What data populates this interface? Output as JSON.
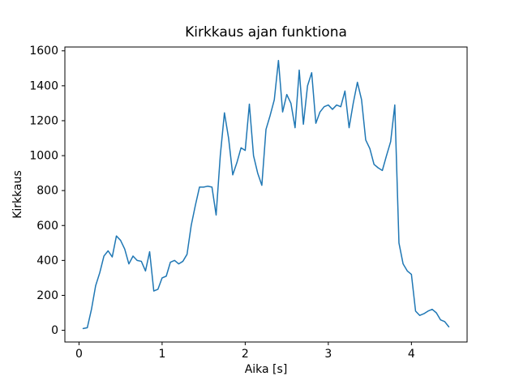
{
  "chart_data": {
    "type": "line",
    "title": "Kirkkaus ajan funktiona",
    "xlabel": "Aika [s]",
    "ylabel": "Kirkkaus",
    "xlim": [
      -0.17,
      4.67
    ],
    "ylim": [
      -67,
      1622
    ],
    "xticks": [
      0,
      1,
      2,
      3,
      4
    ],
    "yticks": [
      0,
      200,
      400,
      600,
      800,
      1000,
      1200,
      1400,
      1600
    ],
    "grid": false,
    "legend": null,
    "line_color": "#1f77b4",
    "line_width": 1.5,
    "x": [
      0.05,
      0.1,
      0.15,
      0.2,
      0.25,
      0.3,
      0.35,
      0.4,
      0.45,
      0.5,
      0.55,
      0.6,
      0.65,
      0.7,
      0.75,
      0.8,
      0.85,
      0.9,
      0.95,
      1.0,
      1.05,
      1.1,
      1.15,
      1.2,
      1.25,
      1.3,
      1.35,
      1.4,
      1.45,
      1.5,
      1.55,
      1.6,
      1.65,
      1.7,
      1.75,
      1.8,
      1.85,
      1.9,
      1.95,
      2.0,
      2.05,
      2.1,
      2.15,
      2.2,
      2.25,
      2.3,
      2.35,
      2.4,
      2.45,
      2.5,
      2.55,
      2.6,
      2.65,
      2.7,
      2.75,
      2.8,
      2.85,
      2.9,
      2.95,
      3.0,
      3.05,
      3.1,
      3.15,
      3.2,
      3.25,
      3.3,
      3.35,
      3.4,
      3.45,
      3.5,
      3.55,
      3.6,
      3.65,
      3.7,
      3.75,
      3.8,
      3.85,
      3.9,
      3.95,
      4.0,
      4.05,
      4.1,
      4.15,
      4.2,
      4.25,
      4.3,
      4.35,
      4.4,
      4.45
    ],
    "y": [
      10,
      15,
      120,
      255,
      330,
      425,
      455,
      420,
      540,
      515,
      465,
      380,
      425,
      400,
      395,
      340,
      450,
      225,
      235,
      300,
      310,
      390,
      400,
      380,
      395,
      435,
      600,
      715,
      820,
      820,
      825,
      820,
      660,
      1000,
      1245,
      1100,
      890,
      960,
      1045,
      1030,
      1295,
      1000,
      900,
      830,
      1150,
      1230,
      1320,
      1545,
      1250,
      1350,
      1300,
      1160,
      1490,
      1180,
      1400,
      1475,
      1185,
      1250,
      1280,
      1290,
      1265,
      1290,
      1280,
      1370,
      1160,
      1300,
      1420,
      1320,
      1090,
      1040,
      950,
      930,
      915,
      1000,
      1080,
      1290,
      500,
      380,
      340,
      320,
      110,
      85,
      95,
      110,
      120,
      100,
      60,
      50,
      20
    ]
  }
}
